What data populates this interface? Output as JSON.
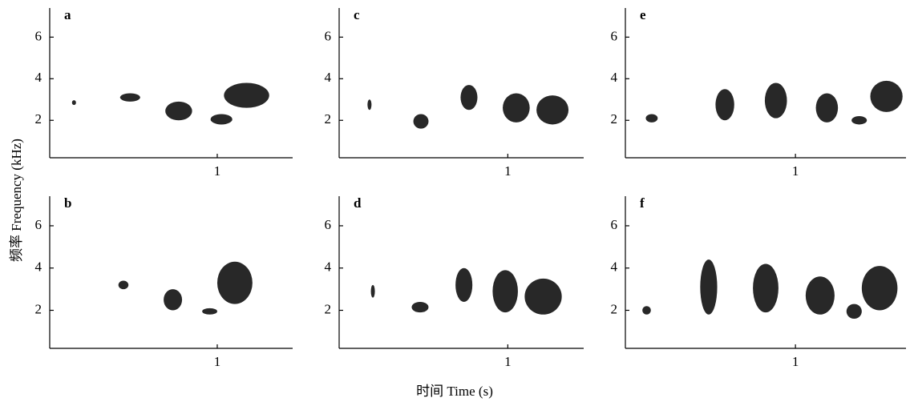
{
  "figure": {
    "y_label": "频率 Frequency (kHz)",
    "x_label": "时间 Time (s)"
  },
  "chart_data": [
    {
      "type": "spectrogram",
      "label": "a",
      "xlim": [
        0,
        1.45
      ],
      "ylim": [
        0.2,
        7.4
      ],
      "xticks": [
        1
      ],
      "yticks": [
        2,
        4,
        6
      ],
      "syllables": [
        [
          0.14,
          0.15,
          2.75,
          2.95
        ],
        [
          0.42,
          0.54,
          2.9,
          3.3
        ],
        [
          0.69,
          0.85,
          2.0,
          2.9
        ],
        [
          0.96,
          1.09,
          1.8,
          2.3
        ],
        [
          1.04,
          1.31,
          2.6,
          3.8
        ]
      ]
    },
    {
      "type": "spectrogram",
      "label": "c",
      "xlim": [
        0,
        1.45
      ],
      "ylim": [
        0.2,
        7.4
      ],
      "xticks": [
        1
      ],
      "yticks": [
        2,
        4,
        6
      ],
      "syllables": [
        [
          0.17,
          0.19,
          2.5,
          3.0
        ],
        [
          0.44,
          0.53,
          1.6,
          2.3
        ],
        [
          0.72,
          0.82,
          2.5,
          3.7
        ],
        [
          0.97,
          1.13,
          1.9,
          3.3
        ],
        [
          1.17,
          1.36,
          1.8,
          3.2
        ]
      ]
    },
    {
      "type": "spectrogram",
      "label": "e",
      "xlim": [
        0,
        1.65
      ],
      "ylim": [
        0.2,
        7.4
      ],
      "xticks": [
        1
      ],
      "yticks": [
        2,
        4,
        6
      ],
      "syllables": [
        [
          0.12,
          0.19,
          1.9,
          2.3
        ],
        [
          0.53,
          0.64,
          2.0,
          3.5
        ],
        [
          0.82,
          0.95,
          2.1,
          3.8
        ],
        [
          1.12,
          1.25,
          1.9,
          3.3
        ],
        [
          1.33,
          1.42,
          1.8,
          2.2
        ],
        [
          1.44,
          1.63,
          2.4,
          3.9
        ]
      ]
    },
    {
      "type": "spectrogram",
      "label": "b",
      "xlim": [
        0,
        1.45
      ],
      "ylim": [
        0.2,
        7.4
      ],
      "xticks": [
        1
      ],
      "yticks": [
        2,
        4,
        6
      ],
      "syllables": [
        [
          0.41,
          0.47,
          3.0,
          3.4
        ],
        [
          0.68,
          0.79,
          2.0,
          3.0
        ],
        [
          0.91,
          1.0,
          1.8,
          2.1
        ],
        [
          1.0,
          1.21,
          2.3,
          4.3
        ]
      ]
    },
    {
      "type": "spectrogram",
      "label": "d",
      "xlim": [
        0,
        1.45
      ],
      "ylim": [
        0.2,
        7.4
      ],
      "xticks": [
        1
      ],
      "yticks": [
        2,
        4,
        6
      ],
      "syllables": [
        [
          0.19,
          0.21,
          2.6,
          3.2
        ],
        [
          0.43,
          0.53,
          1.9,
          2.4
        ],
        [
          0.69,
          0.79,
          2.4,
          4.0
        ],
        [
          0.91,
          1.06,
          1.9,
          3.9
        ],
        [
          1.1,
          1.32,
          1.8,
          3.5
        ]
      ]
    },
    {
      "type": "spectrogram",
      "label": "f",
      "xlim": [
        0,
        1.65
      ],
      "ylim": [
        0.2,
        7.4
      ],
      "xticks": [
        1
      ],
      "yticks": [
        2,
        4,
        6
      ],
      "syllables": [
        [
          0.1,
          0.15,
          1.8,
          2.2
        ],
        [
          0.44,
          0.54,
          1.8,
          4.4
        ],
        [
          0.75,
          0.9,
          1.9,
          4.2
        ],
        [
          1.06,
          1.23,
          1.8,
          3.6
        ],
        [
          1.3,
          1.39,
          1.6,
          2.3
        ],
        [
          1.39,
          1.6,
          2.0,
          4.1
        ]
      ]
    }
  ]
}
